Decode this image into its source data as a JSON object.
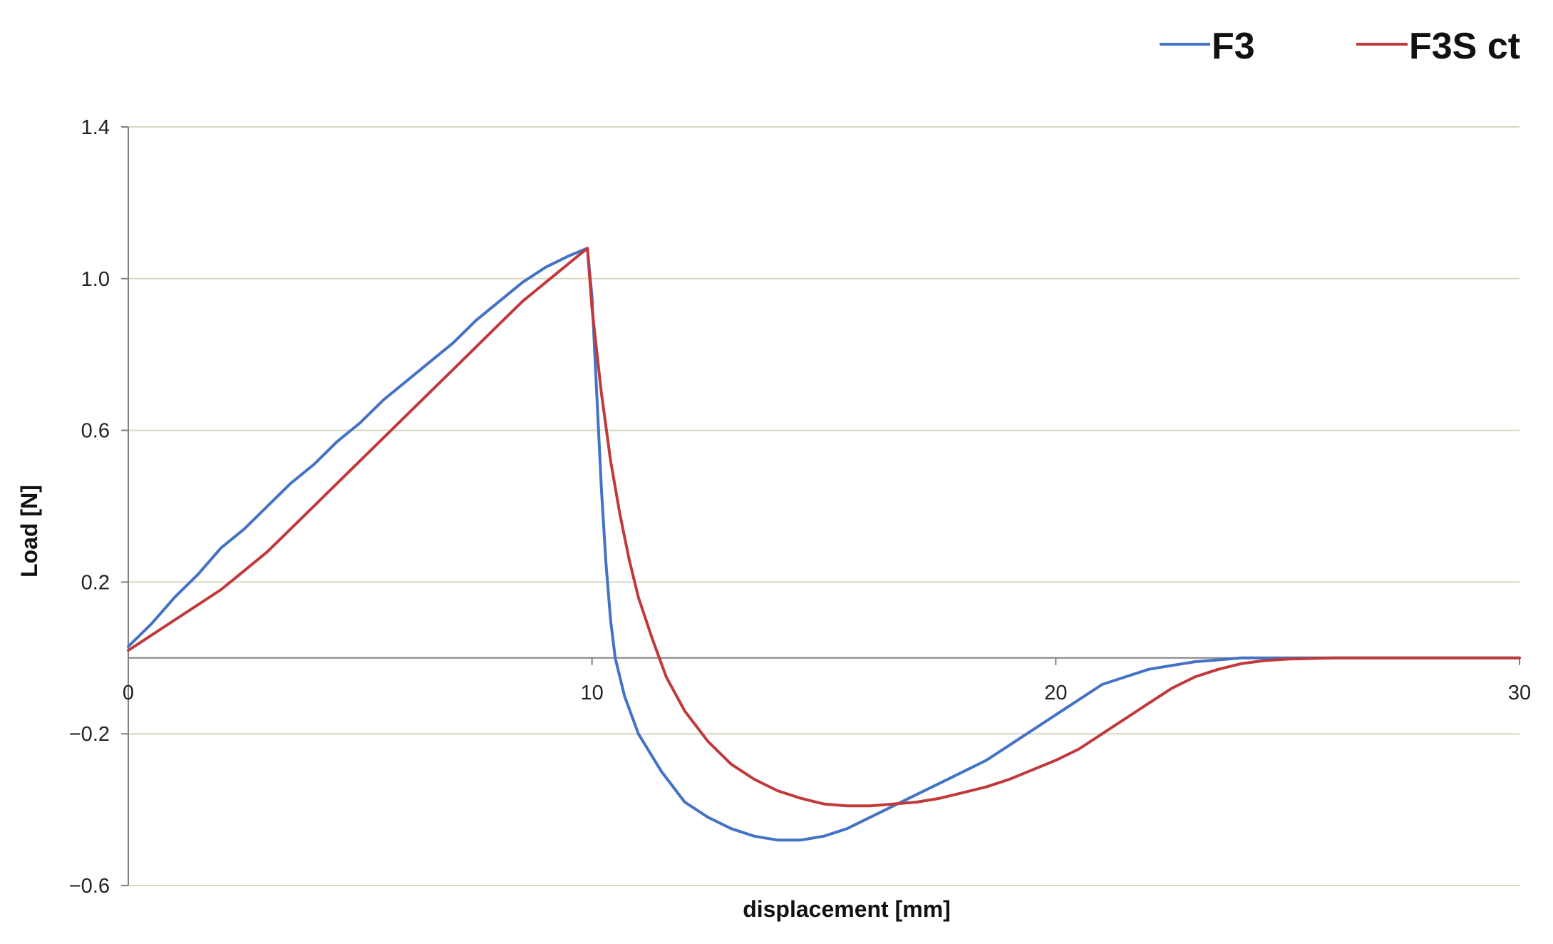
{
  "chart_data": {
    "type": "line",
    "title": "",
    "xlabel": "displacement [mm]",
    "ylabel": "Load [N]",
    "xlim": [
      0,
      30
    ],
    "ylim": [
      -0.6,
      1.4
    ],
    "x_ticks": [
      0,
      10,
      20,
      30
    ],
    "y_ticks": [
      1.4,
      1.0,
      0.6,
      0.2,
      -0.2,
      -0.6
    ],
    "x_tick_labels": [
      "0",
      "10",
      "20",
      "30"
    ],
    "y_tick_labels": [
      "1.4",
      "1.0",
      "0.6",
      "0.2",
      "−0.2",
      "−0.6"
    ],
    "grid": "horizontal",
    "grid_color": "#d9d6c3",
    "axis_color": "#808080",
    "legend": "top-right",
    "series": [
      {
        "name": "F3",
        "color": "#4472c4",
        "points": [
          [
            0,
            0.03
          ],
          [
            0.5,
            0.09
          ],
          [
            1,
            0.16
          ],
          [
            1.5,
            0.22
          ],
          [
            2,
            0.29
          ],
          [
            2.5,
            0.34
          ],
          [
            3,
            0.4
          ],
          [
            3.5,
            0.46
          ],
          [
            4,
            0.51
          ],
          [
            4.5,
            0.57
          ],
          [
            5,
            0.62
          ],
          [
            5.5,
            0.68
          ],
          [
            6,
            0.73
          ],
          [
            6.5,
            0.78
          ],
          [
            7,
            0.83
          ],
          [
            7.5,
            0.89
          ],
          [
            8,
            0.94
          ],
          [
            8.5,
            0.99
          ],
          [
            9,
            1.03
          ],
          [
            9.5,
            1.06
          ],
          [
            9.9,
            1.08
          ],
          [
            10,
            0.95
          ],
          [
            10.1,
            0.7
          ],
          [
            10.2,
            0.45
          ],
          [
            10.3,
            0.25
          ],
          [
            10.4,
            0.1
          ],
          [
            10.5,
            0.0
          ],
          [
            10.7,
            -0.1
          ],
          [
            11,
            -0.2
          ],
          [
            11.5,
            -0.3
          ],
          [
            12,
            -0.38
          ],
          [
            12.5,
            -0.42
          ],
          [
            13,
            -0.45
          ],
          [
            13.5,
            -0.47
          ],
          [
            14,
            -0.48
          ],
          [
            14.5,
            -0.48
          ],
          [
            15,
            -0.47
          ],
          [
            15.5,
            -0.45
          ],
          [
            16,
            -0.42
          ],
          [
            16.5,
            -0.39
          ],
          [
            17,
            -0.36
          ],
          [
            17.5,
            -0.33
          ],
          [
            18,
            -0.3
          ],
          [
            18.5,
            -0.27
          ],
          [
            19,
            -0.23
          ],
          [
            19.5,
            -0.19
          ],
          [
            20,
            -0.15
          ],
          [
            20.5,
            -0.11
          ],
          [
            21,
            -0.07
          ],
          [
            21.5,
            -0.05
          ],
          [
            22,
            -0.03
          ],
          [
            22.5,
            -0.02
          ],
          [
            23,
            -0.01
          ],
          [
            23.5,
            -0.005
          ],
          [
            24,
            0.0
          ],
          [
            26,
            0.0
          ],
          [
            28,
            0.0
          ],
          [
            30,
            0.0
          ]
        ]
      },
      {
        "name": "F3S ct",
        "color": "#c0393b",
        "points": [
          [
            0,
            0.02
          ],
          [
            0.5,
            0.06
          ],
          [
            1,
            0.1
          ],
          [
            1.5,
            0.14
          ],
          [
            2,
            0.18
          ],
          [
            2.5,
            0.23
          ],
          [
            3,
            0.28
          ],
          [
            3.5,
            0.34
          ],
          [
            4,
            0.4
          ],
          [
            4.5,
            0.46
          ],
          [
            5,
            0.52
          ],
          [
            5.5,
            0.58
          ],
          [
            6,
            0.64
          ],
          [
            6.5,
            0.7
          ],
          [
            7,
            0.76
          ],
          [
            7.5,
            0.82
          ],
          [
            8,
            0.88
          ],
          [
            8.5,
            0.94
          ],
          [
            9,
            0.99
          ],
          [
            9.5,
            1.04
          ],
          [
            9.9,
            1.08
          ],
          [
            10,
            0.92
          ],
          [
            10.2,
            0.7
          ],
          [
            10.4,
            0.52
          ],
          [
            10.6,
            0.38
          ],
          [
            10.8,
            0.26
          ],
          [
            11,
            0.16
          ],
          [
            11.3,
            0.05
          ],
          [
            11.6,
            -0.05
          ],
          [
            12,
            -0.14
          ],
          [
            12.5,
            -0.22
          ],
          [
            13,
            -0.28
          ],
          [
            13.5,
            -0.32
          ],
          [
            14,
            -0.35
          ],
          [
            14.5,
            -0.37
          ],
          [
            15,
            -0.385
          ],
          [
            15.5,
            -0.39
          ],
          [
            16,
            -0.39
          ],
          [
            16.5,
            -0.385
          ],
          [
            17,
            -0.38
          ],
          [
            17.5,
            -0.37
          ],
          [
            18,
            -0.355
          ],
          [
            18.5,
            -0.34
          ],
          [
            19,
            -0.32
          ],
          [
            19.5,
            -0.295
          ],
          [
            20,
            -0.27
          ],
          [
            20.5,
            -0.24
          ],
          [
            21,
            -0.2
          ],
          [
            21.5,
            -0.16
          ],
          [
            22,
            -0.12
          ],
          [
            22.5,
            -0.08
          ],
          [
            23,
            -0.05
          ],
          [
            23.5,
            -0.03
          ],
          [
            24,
            -0.015
          ],
          [
            24.5,
            -0.007
          ],
          [
            25,
            -0.003
          ],
          [
            26,
            0.0
          ],
          [
            28,
            0.0
          ],
          [
            30,
            0.0
          ]
        ]
      }
    ]
  }
}
